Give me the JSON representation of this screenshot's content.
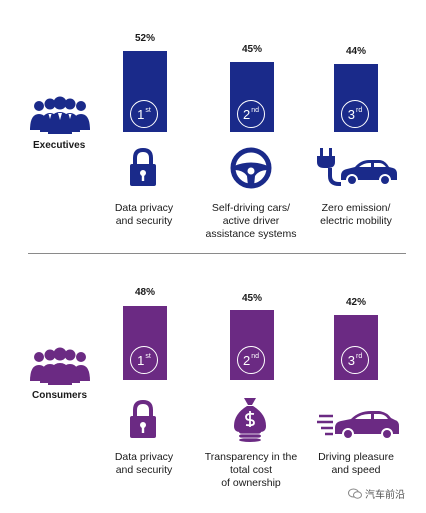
{
  "colors": {
    "executives": "#1a2a8a",
    "consumers": "#6b2a83"
  },
  "chart_data": [
    {
      "type": "bar",
      "group": "Executives",
      "categories": [
        "Data privacy and security",
        "Self-driving cars/ active driver assistance systems",
        "Zero emission/ electric mobility"
      ],
      "values": [
        52,
        45,
        44
      ],
      "value_labels": [
        "52%",
        "45%",
        "44%"
      ],
      "ranks": [
        {
          "num": "1",
          "suffix": "st"
        },
        {
          "num": "2",
          "suffix": "nd"
        },
        {
          "num": "3",
          "suffix": "rd"
        }
      ],
      "icons": [
        "lock-icon",
        "steering-wheel-icon",
        "electric-car-icon"
      ],
      "label_lines": [
        [
          "Data privacy",
          "and security"
        ],
        [
          "Self-driving cars/",
          "active driver",
          "assistance systems"
        ],
        [
          "Zero emission/",
          "electric mobility"
        ]
      ]
    },
    {
      "type": "bar",
      "group": "Consumers",
      "categories": [
        "Data privacy and security",
        "Transparency in the total cost of ownership",
        "Driving pleasure and speed"
      ],
      "values": [
        48,
        45,
        42
      ],
      "value_labels": [
        "48%",
        "45%",
        "42%"
      ],
      "ranks": [
        {
          "num": "1",
          "suffix": "st"
        },
        {
          "num": "2",
          "suffix": "nd"
        },
        {
          "num": "3",
          "suffix": "rd"
        }
      ],
      "icons": [
        "lock-icon",
        "money-bag-icon",
        "fast-car-icon"
      ],
      "label_lines": [
        [
          "Data privacy",
          "and security"
        ],
        [
          "Transparency in the",
          "total cost",
          "of ownership"
        ],
        [
          "Driving pleasure",
          "and speed"
        ]
      ]
    }
  ],
  "watermark": "汽车前沿"
}
